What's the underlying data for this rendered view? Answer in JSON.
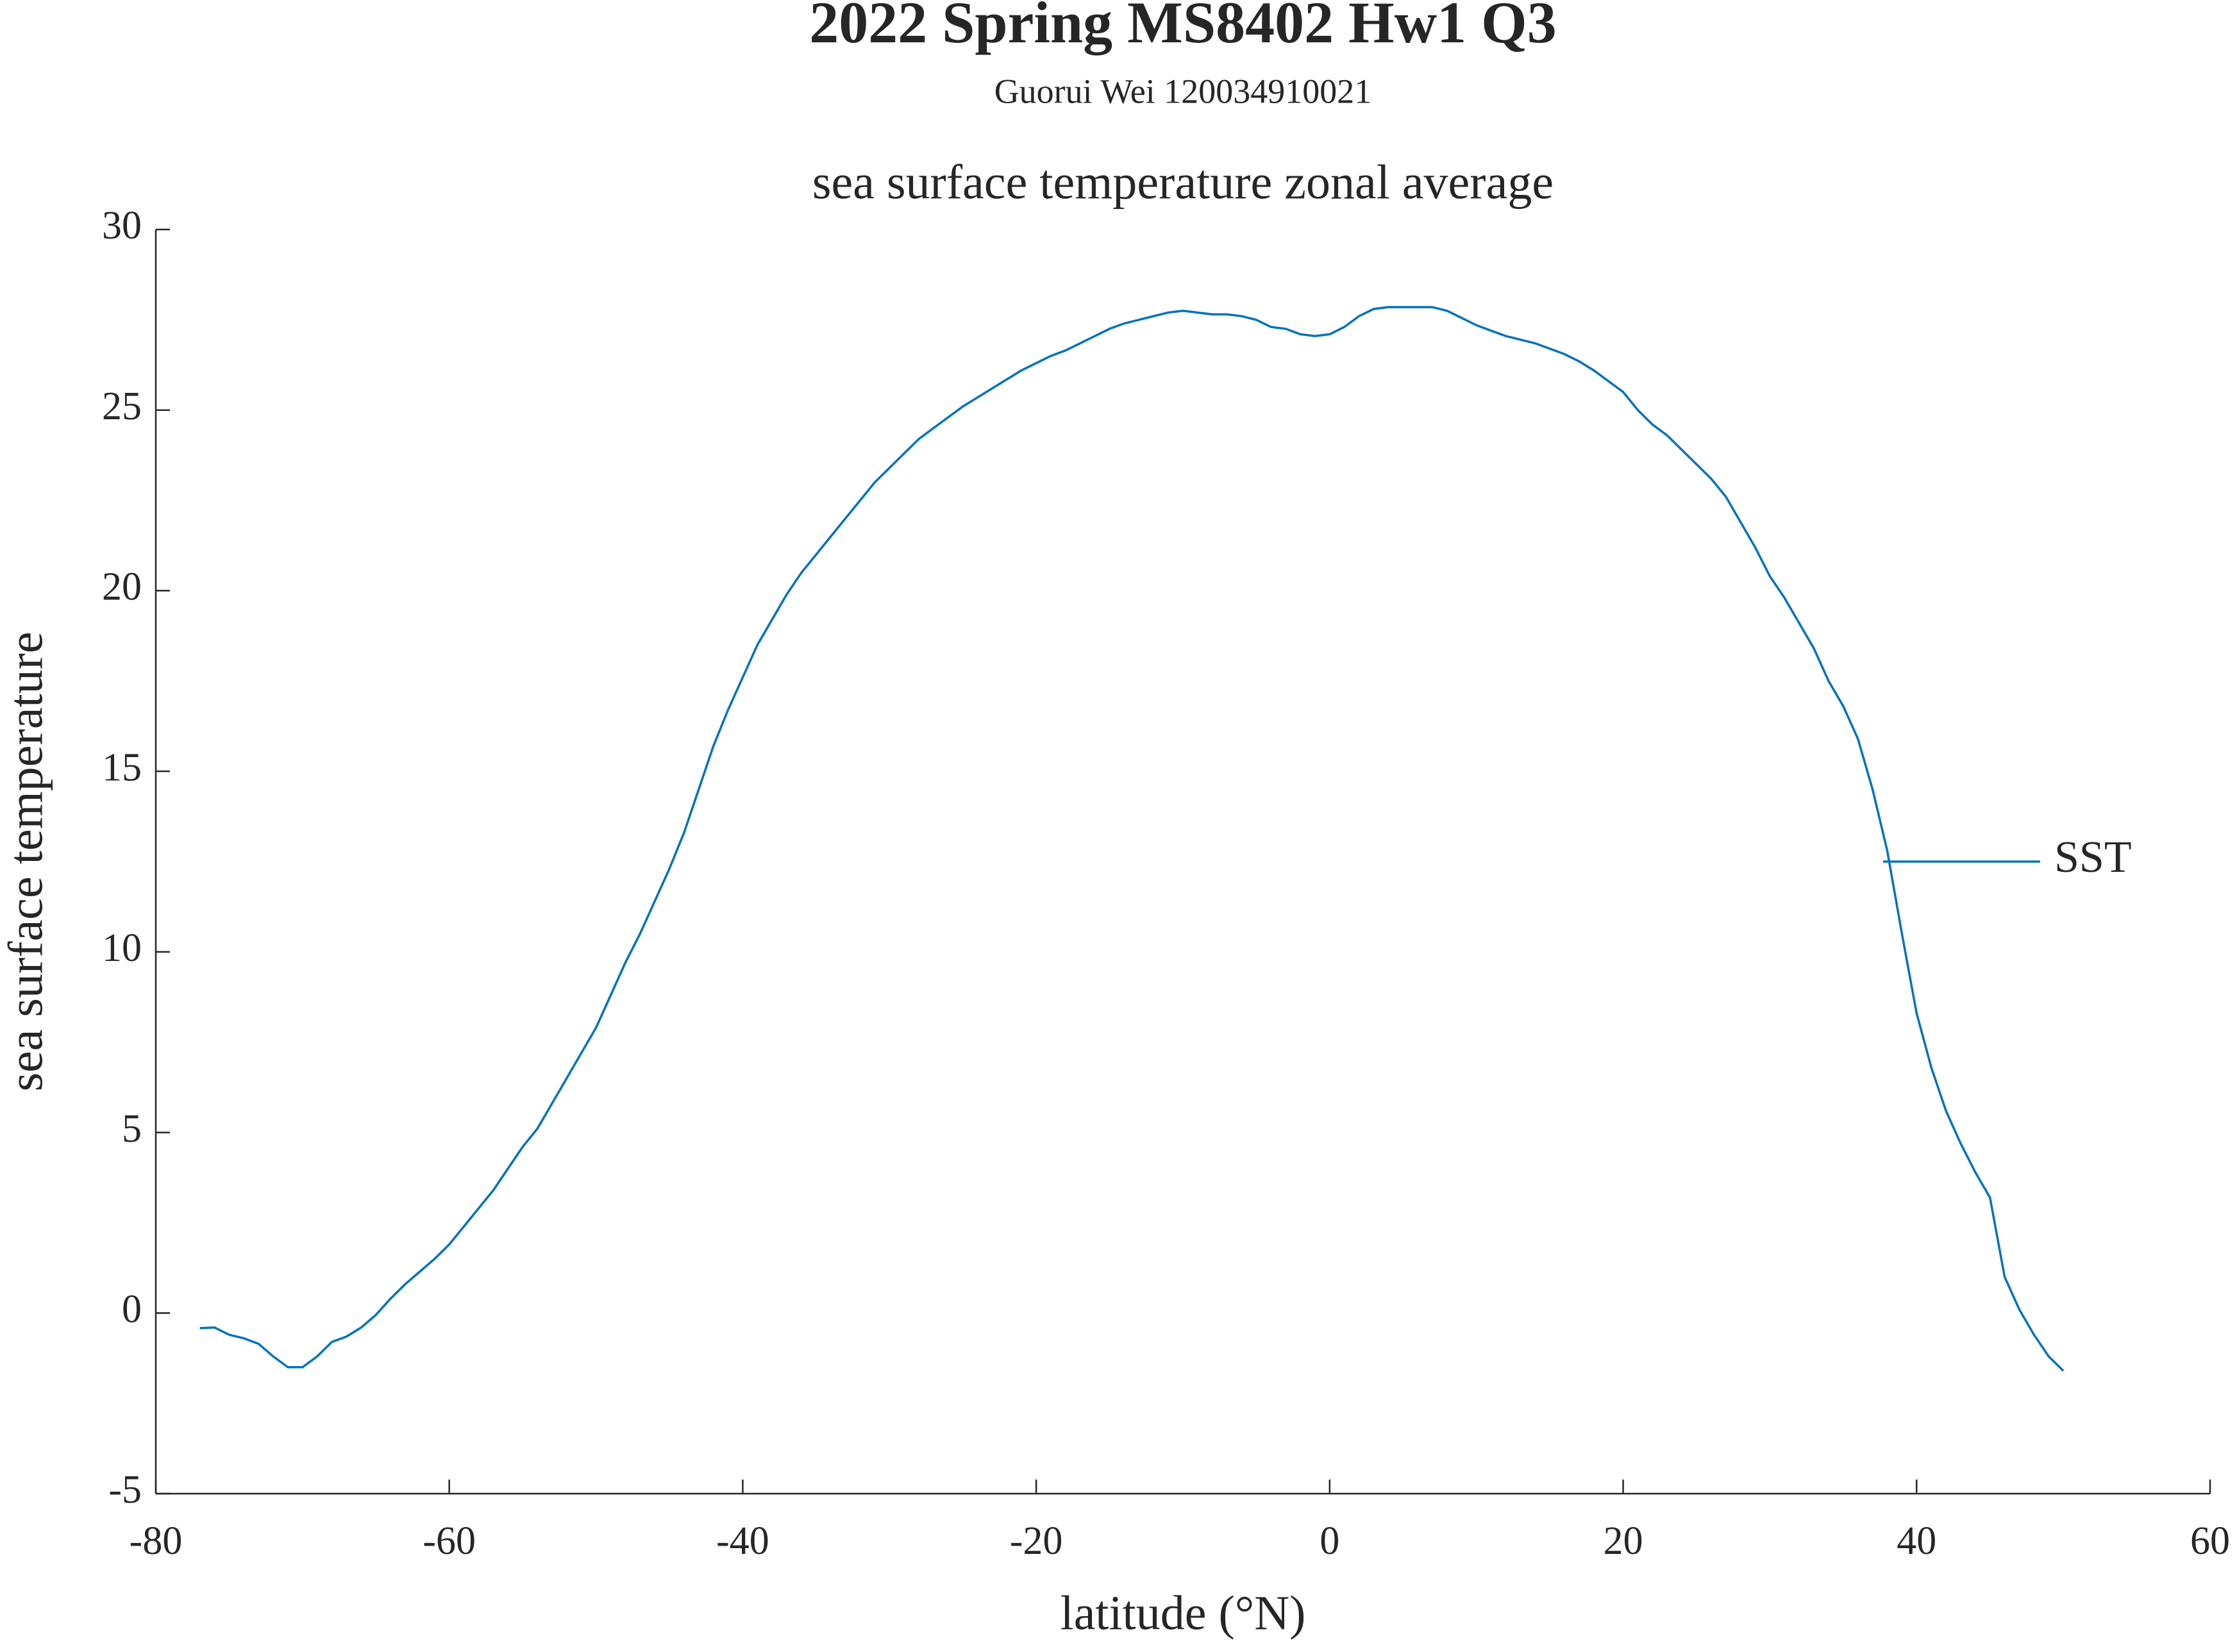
{
  "chart_data": {
    "type": "line",
    "title": "2022 Spring MS8402 Hw1 Q3",
    "subtitle": "Guorui Wei 120034910021",
    "axes_title": "sea surface temperature zonal average",
    "x_label": "latitude (°N)",
    "y_label": "sea surface temperature",
    "x": [
      -77,
      -76,
      -75,
      -74,
      -73,
      -72,
      -71,
      -70,
      -69,
      -68,
      -67,
      -66,
      -65,
      -64,
      -63,
      -62,
      -61,
      -60,
      -59,
      -58,
      -57,
      -56,
      -55,
      -54,
      -53,
      -52,
      -51,
      -50,
      -49,
      -48,
      -47,
      -46,
      -45,
      -44,
      -43,
      -42,
      -41,
      -40,
      -39,
      -38,
      -37,
      -36,
      -35,
      -34,
      -33,
      -32,
      -31,
      -30,
      -29,
      -28,
      -27,
      -26,
      -25,
      -24,
      -23,
      -22,
      -21,
      -20,
      -19,
      -18,
      -17,
      -16,
      -15,
      -14,
      -13,
      -12,
      -11,
      -10,
      -9,
      -8,
      -7,
      -6,
      -5,
      -4,
      -3,
      -2,
      -1,
      0,
      1,
      2,
      3,
      4,
      5,
      6,
      7,
      8,
      9,
      10,
      11,
      12,
      13,
      14,
      15,
      16,
      17,
      18,
      19,
      20,
      21,
      22,
      23,
      24,
      25,
      26,
      27,
      28,
      29,
      30,
      31,
      32,
      33,
      34,
      35,
      36,
      37,
      38,
      39,
      40,
      41,
      42,
      43,
      44,
      45,
      46,
      47,
      48,
      49,
      50
    ],
    "series": [
      {
        "name": "SST",
        "color": "#0072bd",
        "values": [
          -0.42,
          -0.4,
          -0.6,
          -0.7,
          -0.85,
          -1.2,
          -1.5,
          -1.5,
          -1.2,
          -0.8,
          -0.65,
          -0.4,
          -0.05,
          0.4,
          0.8,
          1.15,
          1.5,
          1.9,
          2.4,
          2.9,
          3.4,
          4.0,
          4.6,
          5.1,
          5.8,
          6.5,
          7.2,
          7.9,
          8.8,
          9.7,
          10.5,
          11.4,
          12.3,
          13.3,
          14.5,
          15.7,
          16.7,
          17.6,
          18.5,
          19.2,
          19.9,
          20.5,
          21.0,
          21.5,
          22.0,
          22.5,
          23.0,
          23.4,
          23.8,
          24.2,
          24.5,
          24.8,
          25.1,
          25.35,
          25.6,
          25.85,
          26.1,
          26.3,
          26.5,
          26.65,
          26.85,
          27.05,
          27.25,
          27.4,
          27.5,
          27.6,
          27.7,
          27.75,
          27.7,
          27.65,
          27.65,
          27.6,
          27.5,
          27.3,
          27.25,
          27.1,
          27.05,
          27.1,
          27.3,
          27.6,
          27.8,
          27.85,
          27.85,
          27.85,
          27.85,
          27.75,
          27.55,
          27.35,
          27.2,
          27.05,
          26.95,
          26.85,
          26.7,
          26.55,
          26.35,
          26.1,
          25.8,
          25.5,
          25.0,
          24.6,
          24.3,
          23.9,
          23.5,
          23.1,
          22.6,
          21.9,
          21.2,
          20.4,
          19.8,
          19.1,
          18.4,
          17.5,
          16.8,
          15.9,
          14.5,
          12.8,
          10.5,
          8.3,
          6.8,
          5.6,
          4.7,
          3.9,
          3.2,
          1.0,
          0.1,
          -0.6,
          -1.2,
          -1.6
        ]
      }
    ],
    "xlim": [
      -80,
      60
    ],
    "xticks": [
      -80,
      -60,
      -40,
      -20,
      0,
      20,
      40,
      60
    ],
    "ylim": [
      -5,
      30
    ],
    "yticks": [
      -5,
      0,
      5,
      10,
      15,
      20,
      25,
      30
    ],
    "legend": "east"
  }
}
